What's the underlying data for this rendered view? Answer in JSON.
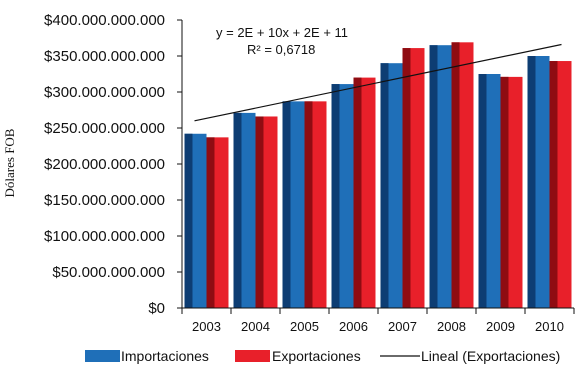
{
  "chart_data": {
    "type": "bar",
    "categories": [
      "2003",
      "2004",
      "2005",
      "2006",
      "2007",
      "2008",
      "2009",
      "2010"
    ],
    "series": [
      {
        "name": "Importaciones",
        "values": [
          242000000000,
          271000000000,
          287000000000,
          311000000000,
          340000000000,
          365000000000,
          325000000000,
          350000000000
        ],
        "color": "#1f6fb8",
        "shade": "#0d3d73"
      },
      {
        "name": "Exportaciones",
        "values": [
          237000000000,
          266000000000,
          287000000000,
          320000000000,
          361000000000,
          369000000000,
          321000000000,
          343000000000
        ],
        "color": "#e8202a",
        "shade": "#8f0c12"
      }
    ],
    "trendline": {
      "name": "Lineal (Exportaciones)",
      "start": 260000000000,
      "end": 366000000000,
      "color": "#111111"
    },
    "annotation": {
      "equation": "y = 2E + 10x + 2E + 11",
      "r_squared": "R² = 0,6718"
    },
    "ylabel": "Dólares FOB",
    "xlabel": "",
    "ylim": [
      0,
      400000000000
    ],
    "y_ticks": [
      {
        "value": 0,
        "label": "$0"
      },
      {
        "value": 50000000000,
        "label": "$50.000.000.000"
      },
      {
        "value": 100000000000,
        "label": "$100.000.000.000"
      },
      {
        "value": 150000000000,
        "label": "$150.000.000.000"
      },
      {
        "value": 200000000000,
        "label": "$200.000.000.000"
      },
      {
        "value": 250000000000,
        "label": "$250.000.000.000"
      },
      {
        "value": 300000000000,
        "label": "$300.000.000.000"
      },
      {
        "value": 350000000000,
        "label": "$350.000.000.000"
      },
      {
        "value": 400000000000,
        "label": "$400.000.000.000"
      }
    ],
    "grid": false,
    "legend_position": "bottom"
  }
}
